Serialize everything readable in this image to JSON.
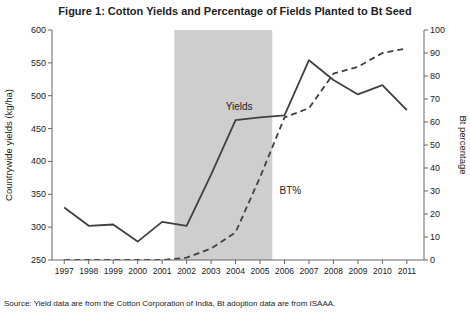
{
  "chart_data": {
    "type": "line",
    "title": "Figure 1: Cotton Yields and Percentage of Fields Planted to Bt Seed",
    "source": "Source: Yield data are from the Cotton Corporation of India, Bt adoption data are from ISAAA.",
    "x": [
      1997,
      1998,
      1999,
      2000,
      2001,
      2002,
      2003,
      2004,
      2005,
      2006,
      2007,
      2008,
      2009,
      2010,
      2011
    ],
    "series": [
      {
        "color": "#404040",
        "line_style": "solid",
        "values": [
          330,
          302,
          304,
          278,
          308,
          302,
          380,
          463,
          467,
          470,
          554,
          524,
          502,
          516,
          478
        ]
      },
      {
        "color": "#404040",
        "line_style": "dashed",
        "axis": "y2",
        "values": [
          0,
          0,
          0,
          0,
          0,
          1,
          5,
          12,
          36,
          62,
          66,
          81,
          84,
          90,
          92
        ]
      }
    ],
    "spans": [
      {
        "start": 2002,
        "end": 2005,
        "color": "#cecece"
      }
    ],
    "annotations": [
      {
        "text": "Yields",
        "x": 2003.6,
        "y": 478
      },
      {
        "text": "BT%",
        "x": 2005.8,
        "y": 350
      }
    ],
    "ylabel": "Countrywide yields (kg/ha)",
    "y2label": "Bt percentage",
    "xlim": [
      1996.5,
      2011.7
    ],
    "xticks": [
      1997,
      1998,
      1999,
      2000,
      2001,
      2002,
      2003,
      2004,
      2005,
      2006,
      2007,
      2008,
      2009,
      2010,
      2011
    ],
    "ylim": [
      250,
      600
    ],
    "yticks": [
      250,
      300,
      350,
      400,
      450,
      500,
      550,
      600
    ],
    "y2lim": [
      0,
      100
    ],
    "y2ticks": [
      0,
      10,
      20,
      30,
      40,
      50,
      60,
      70,
      80,
      90,
      100
    ],
    "grid": false
  }
}
